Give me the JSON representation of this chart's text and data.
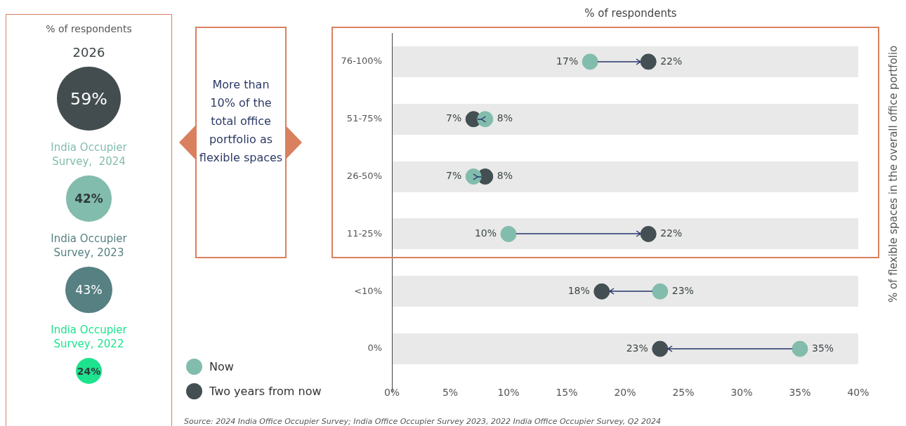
{
  "chart_data": [
    {
      "type": "other",
      "title": "% of respondents",
      "categories": [
        "2026",
        "India Occupier Survey,  2024",
        "India Occupier Survey, 2023",
        "India Occupier Survey, 2022"
      ],
      "values": [
        59,
        42,
        43,
        24
      ],
      "value_labels": [
        "59%",
        "42%",
        "43%",
        "24%"
      ],
      "colors": [
        "#434d4f",
        "#82bcad",
        "#568082",
        "#1ee38e"
      ]
    },
    {
      "type": "scatter",
      "orientation": "horizontal",
      "xlabel": "% of respondents",
      "ylabel": "% of flexible spaces in the overall office portfolio",
      "categories": [
        "76-100%",
        "51-75%",
        "26-50%",
        "11-25%",
        "<10%",
        "0%"
      ],
      "series": [
        {
          "name": "Now",
          "color": "#82bcad",
          "values": [
            17,
            8,
            7,
            10,
            23,
            35
          ],
          "value_labels": [
            "17%",
            "8%",
            "7%",
            "10%",
            "23%",
            "35%"
          ]
        },
        {
          "name": "Two years from now",
          "color": "#434f52",
          "values": [
            22,
            7,
            8,
            22,
            18,
            23
          ],
          "value_labels": [
            "22%",
            "7%",
            "8%",
            "22%",
            "18%",
            "23%"
          ]
        }
      ],
      "xlim": [
        0,
        40
      ],
      "xticks": [
        {
          "value": 0,
          "label": "0%"
        },
        {
          "value": 5,
          "label": "5%"
        },
        {
          "value": 10,
          "label": "10%"
        },
        {
          "value": 15,
          "label": "15%"
        },
        {
          "value": 20,
          "label": "20%"
        },
        {
          "value": 25,
          "label": "25%"
        },
        {
          "value": 30,
          "label": "30%"
        },
        {
          "value": 35,
          "label": "35%"
        },
        {
          "value": 40,
          "label": "40%"
        }
      ],
      "grid": "y",
      "legend": "bottom left",
      "marker": "circle",
      "annotations": [
        "More than 10% of the total office portfolio as flexible spaces",
        "Source: 2024 India Office Occupier Survey; India Office Occupier Survey 2023, 2022 India Office Occupier Survey, Q2 2024"
      ]
    }
  ]
}
